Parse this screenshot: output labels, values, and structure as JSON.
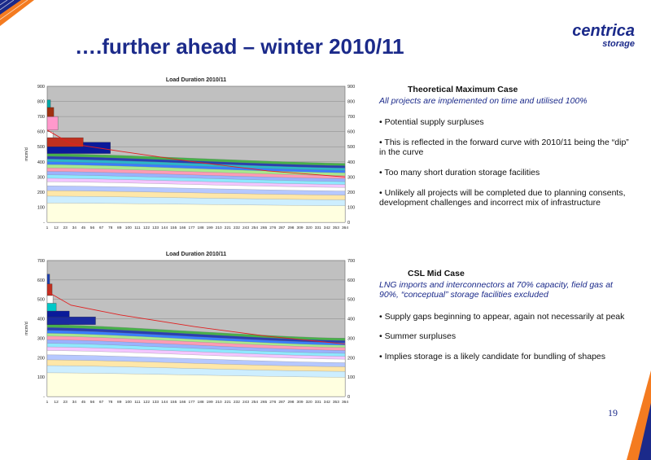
{
  "slide": {
    "title": "….further ahead – winter 2010/11",
    "page_number": "19"
  },
  "logo": {
    "main": "centrica",
    "sub": "storage"
  },
  "colors": {
    "brand_blue": "#1b2a8a",
    "accent_orange": "#f47b20",
    "plot_bg": "#c0c0c0"
  },
  "case1": {
    "heading": "Theoretical Maximum Case",
    "subtitle": "All projects are implemented on time and utilised 100%",
    "bullets": [
      "•  Potential supply surpluses",
      "•  This is reflected in the forward curve with 2010/11 being the “dip” in the curve",
      "•  Too many short duration storage facilities",
      "•  Unlikely all projects will be completed due to planning consents, development challenges and incorrect mix of infrastructure"
    ]
  },
  "case2": {
    "heading": "CSL Mid Case",
    "subtitle": "LNG imports and interconnectors at 70% capacity, field gas at 90%, “conceptual” storage facilities excluded",
    "bullets": [
      "•  Supply gaps beginning to appear, again not necessarily at peak",
      "• Summer surpluses",
      "•  Implies storage is a likely candidate for bundling of shapes"
    ]
  },
  "chart_data": [
    {
      "type": "area",
      "title": "Load Duration 2010/11",
      "ylabel": "mcm/d",
      "xlabel": "",
      "x_ticks": [
        "1",
        "12",
        "23",
        "34",
        "45",
        "56",
        "67",
        "78",
        "89",
        "100",
        "111",
        "122",
        "133",
        "144",
        "155",
        "166",
        "177",
        "188",
        "199",
        "210",
        "221",
        "232",
        "243",
        "254",
        "265",
        "276",
        "287",
        "298",
        "309",
        "320",
        "331",
        "342",
        "353",
        "364"
      ],
      "y_ticks_left": [
        "-",
        "100",
        "200",
        "300",
        "400",
        "500",
        "600",
        "700",
        "800",
        "900"
      ],
      "y_ticks_right": [
        "0",
        "100",
        "200",
        "300",
        "400",
        "500",
        "600",
        "700",
        "800",
        "900"
      ],
      "ylim": [
        0,
        900
      ],
      "xlim": [
        1,
        364
      ],
      "grid": true,
      "stack_top_start": 455,
      "stack_top_end": 390,
      "layer_fractions": [
        0.28,
        0.38,
        0.46,
        0.53,
        0.59,
        0.64,
        0.69,
        0.74,
        0.79,
        0.84,
        0.88,
        0.92,
        0.96,
        1.0
      ],
      "layer_colors": [
        "#ffffe0",
        "#cdeeff",
        "#ffe7a8",
        "#b6c8ff",
        "#ffffff",
        "#f3c6ff",
        "#8fe8ff",
        "#9ab2ff",
        "#ff9bb4",
        "#a7e88e",
        "#3a7dff",
        "#2bb6c9",
        "#2a3fb0",
        "#47b04a"
      ],
      "peak_blocks": [
        {
          "x_end": 8,
          "y0": 470,
          "y1": 600,
          "color": "#ffffff"
        },
        {
          "x_end": 12,
          "y0": 480,
          "y1": 560,
          "color": "#ff80ff"
        },
        {
          "x_end": 78,
          "y0": 455,
          "y1": 530,
          "color": "#0a1a9a"
        },
        {
          "x_end": 45,
          "y0": 500,
          "y1": 560,
          "color": "#c03020"
        },
        {
          "x_end": 14,
          "y0": 610,
          "y1": 700,
          "color": "#ff99cc"
        },
        {
          "x_end": 9,
          "y0": 700,
          "y1": 760,
          "color": "#a03010"
        },
        {
          "x_end": 5,
          "y0": 760,
          "y1": 810,
          "color": "#00a8a8"
        }
      ],
      "demand_curve": [
        [
          1,
          610
        ],
        [
          30,
          520
        ],
        [
          90,
          470
        ],
        [
          180,
          400
        ],
        [
          270,
          340
        ],
        [
          364,
          300
        ]
      ]
    },
    {
      "type": "area",
      "title": "Load Duration 2010/11",
      "ylabel": "mcm/d",
      "xlabel": "",
      "x_ticks": [
        "1",
        "12",
        "23",
        "34",
        "45",
        "56",
        "67",
        "78",
        "89",
        "100",
        "111",
        "122",
        "133",
        "144",
        "155",
        "166",
        "177",
        "188",
        "199",
        "210",
        "221",
        "232",
        "243",
        "254",
        "265",
        "276",
        "287",
        "298",
        "309",
        "320",
        "331",
        "342",
        "353",
        "364"
      ],
      "y_ticks_left": [
        "-",
        "100",
        "200",
        "300",
        "400",
        "500",
        "600",
        "700"
      ],
      "y_ticks_right": [
        "0",
        "100",
        "200",
        "300",
        "400",
        "500",
        "600",
        "700"
      ],
      "ylim": [
        0,
        700
      ],
      "xlim": [
        1,
        364
      ],
      "grid": true,
      "stack_top_start": 370,
      "stack_top_end": 300,
      "layer_fractions": [
        0.33,
        0.43,
        0.51,
        0.58,
        0.64,
        0.69,
        0.74,
        0.79,
        0.84,
        0.88,
        0.92,
        0.96,
        1.0
      ],
      "layer_colors": [
        "#ffffe0",
        "#cdeeff",
        "#ffe7a8",
        "#b6c8ff",
        "#ffffff",
        "#f3c6ff",
        "#8fe8ff",
        "#9ab2ff",
        "#ff9bb4",
        "#a7e88e",
        "#3a7dff",
        "#2a3fb0",
        "#47b04a"
      ],
      "peak_blocks": [
        {
          "x_end": 28,
          "y0": 370,
          "y1": 440,
          "color": "#0a1a9a"
        },
        {
          "x_end": 60,
          "y0": 370,
          "y1": 410,
          "color": "#1a2aa0"
        },
        {
          "x_end": 12,
          "y0": 440,
          "y1": 480,
          "color": "#00c8c8"
        },
        {
          "x_end": 8,
          "y0": 480,
          "y1": 520,
          "color": "#ffffff"
        },
        {
          "x_end": 7,
          "y0": 520,
          "y1": 580,
          "color": "#c03020"
        },
        {
          "x_end": 4,
          "y0": 580,
          "y1": 630,
          "color": "#2040b0"
        }
      ],
      "demand_curve": [
        [
          1,
          540
        ],
        [
          30,
          470
        ],
        [
          90,
          420
        ],
        [
          180,
          360
        ],
        [
          270,
          310
        ],
        [
          364,
          270
        ]
      ]
    }
  ]
}
